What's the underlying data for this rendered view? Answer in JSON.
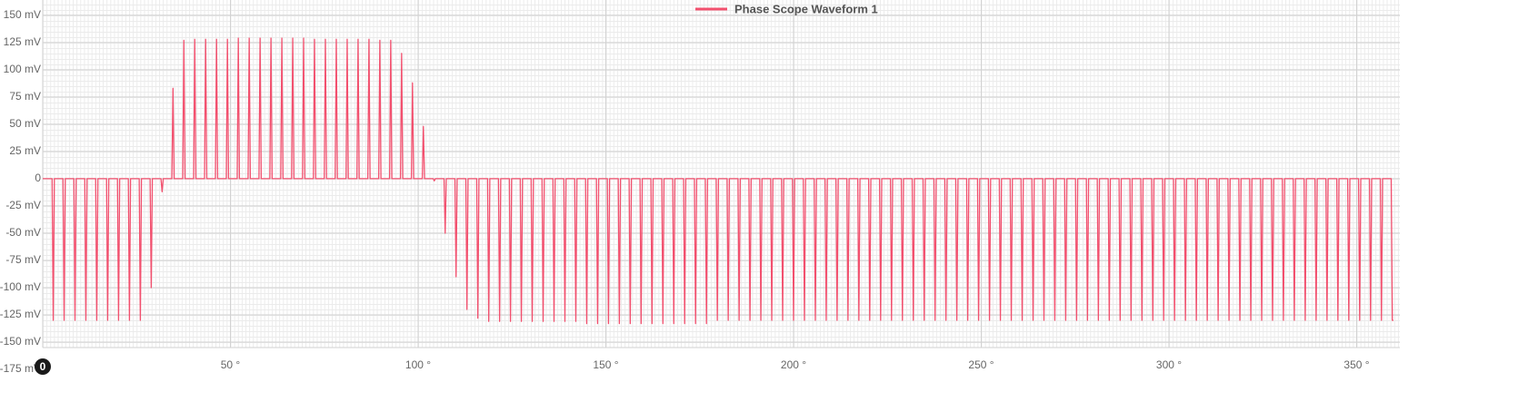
{
  "chart_data": {
    "type": "line",
    "legend_position": "top",
    "grid": true,
    "x": [
      0,
      2.5,
      2.8,
      3.1,
      5.4,
      5.7,
      6,
      8.3,
      8.6,
      8.9,
      11.2,
      11.5,
      11.8,
      14.1,
      14.4,
      14.7,
      17,
      17.3,
      17.6,
      19.9,
      20.2,
      20.5,
      22.8,
      23.1,
      23.4,
      25.7,
      26,
      26.3,
      28.6,
      28.9,
      29.2,
      31.5,
      31.8,
      32.1,
      34.4,
      34.7,
      35,
      37.3,
      37.6,
      37.9,
      40.2,
      40.5,
      40.8,
      43.1,
      43.4,
      43.7,
      46,
      46.3,
      46.6,
      48.9,
      49.2,
      49.5,
      51.8,
      52.1,
      52.4,
      54.7,
      55,
      55.3,
      57.6,
      57.9,
      58.2,
      60.5,
      60.8,
      61.1,
      63.4,
      63.7,
      64,
      66.3,
      66.6,
      66.9,
      69.2,
      69.5,
      69.8,
      72.1,
      72.4,
      72.7,
      75,
      75.3,
      75.6,
      77.9,
      78.2,
      78.5,
      80.8,
      81.1,
      81.4,
      83.7,
      84,
      84.3,
      86.6,
      86.9,
      87.2,
      89.5,
      89.8,
      90.1,
      92.4,
      92.7,
      93,
      95.3,
      95.6,
      95.9,
      98.2,
      98.5,
      98.8,
      101.1,
      101.4,
      101.7,
      104,
      104.3,
      104.6,
      106.9,
      107.2,
      107.5,
      109.8,
      110.1,
      110.4,
      112.7,
      113,
      113.3,
      115.6,
      115.9,
      116.2,
      118.5,
      118.8,
      119.1,
      121.4,
      121.7,
      122,
      124.3,
      124.6,
      124.9,
      127.2,
      127.5,
      127.8,
      130.1,
      130.4,
      130.7,
      133,
      133.3,
      133.6,
      135.9,
      136.2,
      136.5,
      138.8,
      139.1,
      139.4,
      141.7,
      142,
      142.3,
      144.6,
      144.9,
      145.2,
      147.5,
      147.8,
      148.1,
      150.4,
      150.7,
      151,
      153.3,
      153.6,
      153.9,
      156.2,
      156.5,
      156.8,
      159.1,
      159.4,
      159.7,
      162,
      162.3,
      162.6,
      164.9,
      165.2,
      165.5,
      167.8,
      168.1,
      168.4,
      170.7,
      171,
      171.3,
      173.6,
      173.9,
      174.2,
      176.5,
      176.8,
      177.1,
      179.4,
      179.7,
      180,
      182.3,
      182.6,
      182.9,
      185.2,
      185.5,
      185.8,
      188.1,
      188.4,
      188.7,
      191,
      191.3,
      191.6,
      193.9,
      194.2,
      194.5,
      196.8,
      197.1,
      197.4,
      199.7,
      200,
      200.3,
      202.6,
      202.9,
      203.2,
      205.5,
      205.8,
      206.1,
      208.4,
      208.7,
      209,
      211.3,
      211.6,
      211.9,
      214.2,
      214.5,
      214.8,
      217.1,
      217.4,
      217.7,
      220,
      220.3,
      220.6,
      222.9,
      223.2,
      223.5,
      225.8,
      226.1,
      226.4,
      228.7,
      229,
      229.3,
      231.6,
      231.9,
      232.2,
      234.5,
      234.8,
      235.1,
      237.4,
      237.7,
      238,
      240.3,
      240.6,
      240.9,
      243.2,
      243.5,
      243.8,
      246.1,
      246.4,
      246.7,
      249,
      249.3,
      249.6,
      251.9,
      252.2,
      252.5,
      254.8,
      255.1,
      255.4,
      257.7,
      258,
      258.3,
      260.6,
      260.9,
      261.2,
      263.5,
      263.8,
      264.1,
      266.4,
      266.7,
      267,
      269.3,
      269.6,
      269.9,
      272.2,
      272.5,
      272.8,
      275.1,
      275.4,
      275.7,
      278,
      278.3,
      278.6,
      280.9,
      281.2,
      281.5,
      283.8,
      284.1,
      284.4,
      286.7,
      287,
      287.3,
      289.6,
      289.9,
      290.2,
      292.5,
      292.8,
      293.1,
      295.4,
      295.7,
      296,
      298.3,
      298.6,
      298.9,
      301.2,
      301.5,
      301.8,
      304.1,
      304.4,
      304.7,
      307,
      307.3,
      307.6,
      309.9,
      310.2,
      310.5,
      312.8,
      313.1,
      313.4,
      315.7,
      316,
      316.3,
      318.6,
      318.9,
      319.2,
      321.5,
      321.8,
      322.1,
      324.4,
      324.7,
      325,
      327.3,
      327.6,
      327.9,
      330.2,
      330.5,
      330.8,
      333.1,
      333.4,
      333.7,
      336,
      336.3,
      336.6,
      338.9,
      339.2,
      339.5,
      341.8,
      342.1,
      342.4,
      344.7,
      345,
      345.3,
      347.6,
      347.9,
      348.2,
      350.5,
      350.8,
      351.1,
      353.4,
      353.7,
      354,
      356.3,
      356.6,
      356.9,
      359.2,
      359.5,
      359.8
    ],
    "series": [
      {
        "name": "Phase Scope Waveform 1",
        "color": "#f2506e",
        "values": [
          0,
          0,
          -130,
          0,
          0,
          -130,
          0,
          0,
          -130,
          0,
          0,
          -130,
          0,
          0,
          -130,
          0,
          0,
          -130,
          0,
          0,
          -130,
          0,
          0,
          -130,
          0,
          0,
          -130,
          0,
          0,
          -100,
          0,
          0,
          -12,
          0,
          0,
          83,
          0,
          0,
          127,
          0,
          0,
          128,
          0,
          0,
          128,
          0,
          0,
          128,
          0,
          0,
          128,
          0,
          0,
          129,
          0,
          0,
          129,
          0,
          0,
          129,
          0,
          0,
          129,
          0,
          0,
          129,
          0,
          0,
          129,
          0,
          0,
          129,
          0,
          0,
          128,
          0,
          0,
          128,
          0,
          0,
          128,
          0,
          0,
          128,
          0,
          0,
          128,
          0,
          0,
          128,
          0,
          0,
          127,
          0,
          0,
          127,
          0,
          0,
          115,
          0,
          0,
          88,
          0,
          0,
          48,
          0,
          0,
          -2,
          0,
          0,
          -50,
          0,
          0,
          -90,
          0,
          0,
          -120,
          0,
          0,
          -128,
          0,
          0,
          -131,
          0,
          0,
          -131,
          0,
          0,
          -131,
          0,
          0,
          -131,
          0,
          0,
          -131,
          0,
          0,
          -131,
          0,
          0,
          -131,
          0,
          0,
          -131,
          0,
          0,
          -131,
          0,
          0,
          -133,
          0,
          0,
          -133,
          0,
          0,
          -133,
          0,
          0,
          -133,
          0,
          0,
          -133,
          0,
          0,
          -133,
          0,
          0,
          -133,
          0,
          0,
          -133,
          0,
          0,
          -133,
          0,
          0,
          -133,
          0,
          0,
          -133,
          0,
          0,
          -133,
          0,
          0,
          -130,
          0,
          0,
          -130,
          0,
          0,
          -130,
          0,
          0,
          -130,
          0,
          0,
          -130,
          0,
          0,
          -130,
          0,
          0,
          -130,
          0,
          0,
          -130,
          0,
          0,
          -130,
          0,
          0,
          -130,
          0,
          0,
          -130,
          0,
          0,
          -130,
          0,
          0,
          -130,
          0,
          0,
          -130,
          0,
          0,
          -130,
          0,
          0,
          -130,
          0,
          0,
          -130,
          0,
          0,
          -130,
          0,
          0,
          -130,
          0,
          0,
          -130,
          0,
          0,
          -130,
          0,
          0,
          -130,
          0,
          0,
          -130,
          0,
          0,
          -130,
          0,
          0,
          -130,
          0,
          0,
          -130,
          0,
          0,
          -130,
          0,
          0,
          -130,
          0,
          0,
          -130,
          0,
          0,
          -130,
          0,
          0,
          -130,
          0,
          0,
          -130,
          0,
          0,
          -130,
          0,
          0,
          -130,
          0,
          0,
          -130,
          0,
          0,
          -130,
          0,
          0,
          -130,
          0,
          0,
          -130,
          0,
          0,
          -130,
          0,
          0,
          -130,
          0,
          0,
          -130,
          0,
          0,
          -130,
          0,
          0,
          -130,
          0,
          0,
          -130,
          0,
          0,
          -130,
          0,
          0,
          -130,
          0,
          0,
          -130,
          0,
          0,
          -130,
          0,
          0,
          -130,
          0,
          0,
          -130,
          0,
          0,
          -130,
          0,
          0,
          -130,
          0,
          0,
          -130,
          0,
          0,
          -130,
          0,
          0,
          -130,
          0,
          0,
          -130,
          0,
          0,
          -130,
          0,
          0,
          -130,
          0,
          0,
          -130,
          0,
          0,
          -130,
          0,
          0,
          -130,
          0,
          0,
          -130,
          0,
          0,
          -130,
          -130
        ]
      }
    ],
    "xlim": [
      0,
      361.5
    ],
    "ylim": [
      -155,
      164
    ],
    "xticks": [
      {
        "value": 50,
        "label": "50 °"
      },
      {
        "value": 100,
        "label": "100 °"
      },
      {
        "value": 150,
        "label": "150 °"
      },
      {
        "value": 200,
        "label": "200 °"
      },
      {
        "value": 250,
        "label": "250 °"
      },
      {
        "value": 300,
        "label": "300 °"
      },
      {
        "value": 350,
        "label": "350 °"
      }
    ],
    "yticks": [
      {
        "value": 150,
        "label": "150 mV"
      },
      {
        "value": 125,
        "label": "125 mV"
      },
      {
        "value": 100,
        "label": "100 mV"
      },
      {
        "value": 75,
        "label": "75 mV"
      },
      {
        "value": 50,
        "label": "50 mV"
      },
      {
        "value": 25,
        "label": "25 mV"
      },
      0,
      {
        "value": -25,
        "label": "-25 mV"
      },
      {
        "value": -50,
        "label": "-50 mV"
      },
      {
        "value": -75,
        "label": "-75 mV"
      },
      {
        "value": -100,
        "label": "-100 mV"
      },
      {
        "value": -125,
        "label": "-125 mV"
      },
      {
        "value": -150,
        "label": "-150 mV"
      },
      {
        "value": -175,
        "label": "-175 mV"
      }
    ],
    "badge": "0"
  }
}
